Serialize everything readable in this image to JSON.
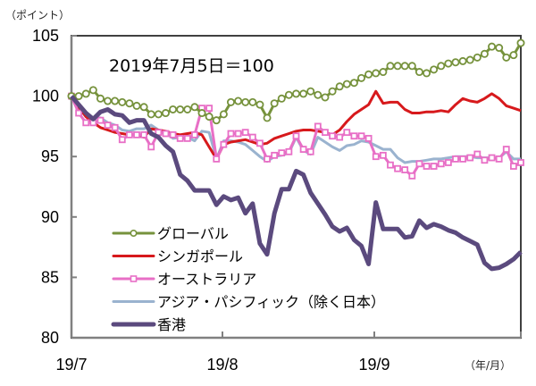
{
  "chart_data": {
    "type": "line",
    "title": "",
    "annotation": "2019年7月5日＝100",
    "ylabel": "（ポイント）",
    "xlabel": "（年/月）",
    "ylim": [
      80,
      105
    ],
    "yticks": [
      80,
      85,
      90,
      95,
      100,
      105
    ],
    "ytick_labels": [
      "80",
      "85",
      "90",
      "95",
      "100",
      "105"
    ],
    "xtick_labels": [
      "19/7",
      "19/8",
      "19/9"
    ],
    "xtick_index": [
      0,
      20,
      40
    ],
    "grid": false,
    "legend_position": "bottom-left-inside",
    "series": [
      {
        "name": "グローバル",
        "color": "#76923c",
        "marker": "circle",
        "values": [
          100,
          100,
          100.2,
          100.5,
          99.8,
          99.6,
          99.6,
          99.5,
          99.4,
          99.2,
          99.1,
          98.5,
          98.5,
          98.6,
          98.9,
          98.9,
          98.9,
          99.1,
          98.6,
          98.3,
          98.0,
          98.5,
          99.5,
          99.6,
          99.5,
          99.5,
          99.3,
          98.2,
          99.4,
          99.8,
          100.1,
          100.2,
          100.2,
          100.4,
          100.1,
          99.9,
          100.4,
          100.8,
          101.0,
          101.1,
          101.5,
          101.8,
          101.9,
          102.0,
          102.5,
          102.5,
          102.5,
          102.5,
          102.0,
          101.9,
          102.2,
          102.5,
          102.7,
          102.8,
          102.9,
          103.0,
          103.2,
          103.5,
          104.1,
          104.0,
          103.2,
          103.4,
          104.4
        ]
      },
      {
        "name": "シンガポール",
        "color": "#d7191c",
        "marker": "none",
        "values": [
          100,
          99.1,
          98.3,
          97.8,
          97.4,
          97.2,
          97.0,
          96.9,
          96.8,
          96.8,
          96.6,
          97.3,
          97.2,
          97.1,
          96.9,
          96.8,
          96.9,
          97.0,
          96.8,
          95.8,
          94.8,
          96.0,
          96.2,
          96.3,
          96.4,
          96.2,
          96.0,
          96.1,
          96.5,
          96.7,
          96.9,
          97.1,
          97.2,
          97.2,
          97.1,
          97.0,
          96.8,
          97.2,
          97.9,
          98.5,
          98.9,
          99.3,
          100.4,
          99.4,
          99.5,
          99.5,
          98.9,
          98.6,
          98.6,
          98.7,
          98.7,
          98.8,
          98.7,
          99.3,
          99.8,
          99.6,
          99.5,
          99.8,
          100.2,
          99.8,
          99.2,
          99.0,
          98.8
        ]
      },
      {
        "name": "オーストラリア",
        "color": "#e86fc6",
        "marker": "square",
        "values": [
          100,
          98.6,
          97.8,
          97.8,
          98.0,
          97.6,
          97.4,
          96.4,
          96.8,
          96.8,
          96.8,
          95.8,
          97.0,
          96.9,
          96.8,
          96.5,
          96.5,
          96.8,
          99.0,
          99.0,
          94.8,
          96.0,
          96.9,
          96.9,
          97.0,
          96.6,
          96.1,
          94.8,
          95.1,
          95.3,
          95.4,
          96.7,
          95.6,
          95.4,
          97.5,
          97.0,
          96.7,
          96.6,
          97.0,
          96.7,
          96.7,
          96.5,
          95.0,
          95.1,
          94.3,
          94.0,
          93.9,
          93.4,
          94.4,
          94.2,
          94.2,
          94.4,
          94.5,
          94.8,
          94.8,
          94.9,
          95.2,
          94.7,
          94.9,
          94.8,
          95.6,
          94.2,
          94.5
        ]
      },
      {
        "name": "アジア・パシフィック（除く日本）",
        "color": "#9ab3cf",
        "marker": "none",
        "values": [
          100,
          99.0,
          98.3,
          98.2,
          98.2,
          97.8,
          97.6,
          97.2,
          97.1,
          97.3,
          97.3,
          97.6,
          97.2,
          97.0,
          96.5,
          96.6,
          96.6,
          96.3,
          97.1,
          97.0,
          94.8,
          96.3,
          96.3,
          96.2,
          96.0,
          95.5,
          95.0,
          94.6,
          95.0,
          95.1,
          95.3,
          96.6,
          95.5,
          95.2,
          96.6,
          96.2,
          95.8,
          95.5,
          95.9,
          96.0,
          96.3,
          96.2,
          95.9,
          95.6,
          95.6,
          94.9,
          94.5,
          94.6,
          94.6,
          94.7,
          94.8,
          94.8,
          94.9,
          95.0,
          95.0,
          95.0,
          94.9,
          94.9,
          94.9,
          94.9,
          95.4,
          94.8,
          94.8
        ]
      },
      {
        "name": "香港",
        "color": "#5b4a7e",
        "marker": "none",
        "values": [
          100,
          99.3,
          98.6,
          98.1,
          98.7,
          98.9,
          98.5,
          98.4,
          97.8,
          98.0,
          98.0,
          96.9,
          96.6,
          95.9,
          95.4,
          93.5,
          93.0,
          92.2,
          92.2,
          92.2,
          91.0,
          91.7,
          91.4,
          91.6,
          90.3,
          91.1,
          87.8,
          86.9,
          90.3,
          92.3,
          92.3,
          93.8,
          93.5,
          92.0,
          91.1,
          90.2,
          89.2,
          88.8,
          89.1,
          88.1,
          87.6,
          86.1,
          91.2,
          89.0,
          89.0,
          89.0,
          88.3,
          88.4,
          89.7,
          89.1,
          89.4,
          89.2,
          88.9,
          88.7,
          88.3,
          88.0,
          87.7,
          86.2,
          85.7,
          85.8,
          86.1,
          86.5,
          87.1
        ]
      }
    ]
  }
}
